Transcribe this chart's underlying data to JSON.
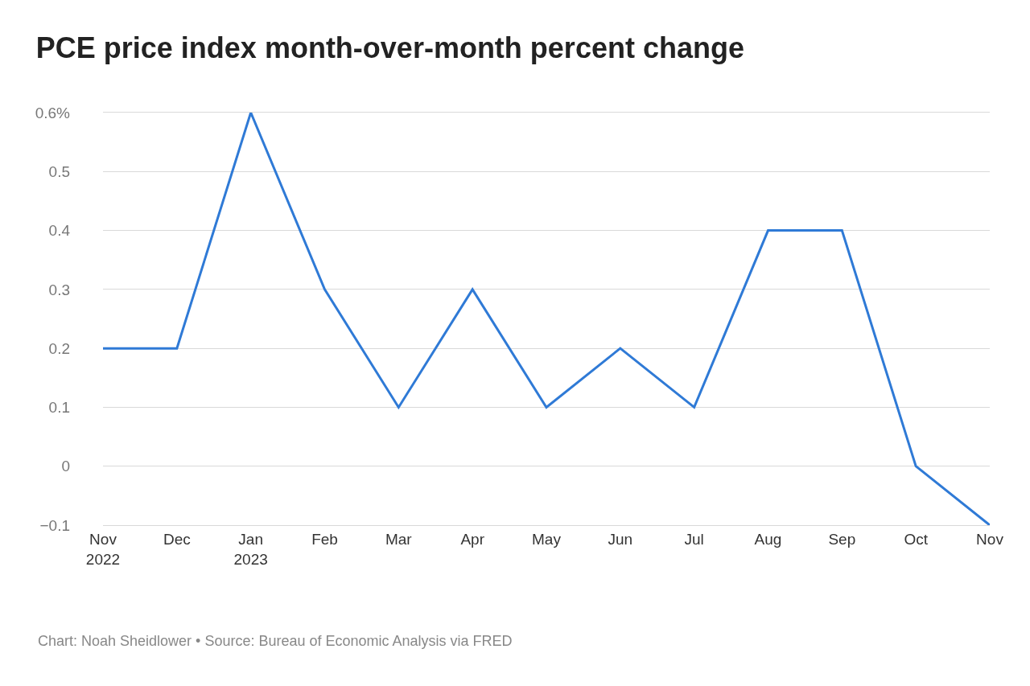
{
  "chart_data": {
    "type": "line",
    "title": "PCE price index month-over-month percent change",
    "categories": [
      "Nov\n2022",
      "Dec",
      "Jan\n2023",
      "Feb",
      "Mar",
      "Apr",
      "May",
      "Jun",
      "Jul",
      "Aug",
      "Sep",
      "Oct",
      "Nov"
    ],
    "series": [
      {
        "color": "#2f7ad6",
        "values": [
          0.2,
          0.2,
          0.6,
          0.3,
          0.1,
          0.3,
          0.1,
          0.2,
          0.1,
          0.4,
          0.4,
          0,
          -0.1
        ]
      }
    ],
    "ylim": [
      -0.1,
      0.6
    ],
    "yticks": [
      {
        "value": -0.1,
        "label": "−0.1"
      },
      0,
      0.1,
      0.2,
      0.3,
      0.4,
      0.5,
      {
        "value": 0.6,
        "label": "0.6%"
      }
    ],
    "grid": "y",
    "marker": "none",
    "line_style": "solid",
    "annotations": [
      "Chart: Noah Sheidlower • Source: Bureau of Economic Analysis via FRED"
    ]
  }
}
